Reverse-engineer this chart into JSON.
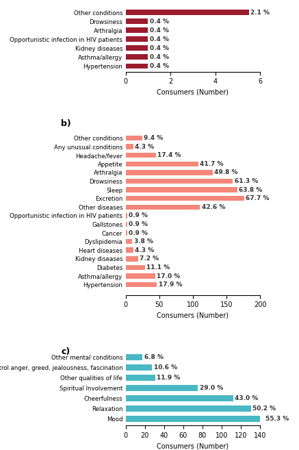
{
  "panel_a": {
    "categories": [
      "Other conditions",
      "Drowsiness",
      "Arthralgia",
      "Opportunistic infection in HIV patients",
      "Kidney diseases",
      "Asthma/allergy",
      "Hypertension"
    ],
    "values": [
      5.5,
      1.0,
      1.0,
      1.0,
      1.0,
      1.0,
      1.0
    ],
    "percentages": [
      "2.1 %",
      "0.4 %",
      "0.4 %",
      "0.4 %",
      "0.4 %",
      "0.4 %",
      "0.4 %"
    ],
    "color": "#9b1c2e",
    "xlabel": "Consumers (Number)",
    "xlim": [
      0,
      6
    ],
    "xticks": [
      0,
      2,
      4,
      6
    ]
  },
  "panel_b": {
    "categories": [
      "Other conditions",
      "Any unusual conditions",
      "Headache/fever",
      "Appetite",
      "Arthralgia",
      "Drowsiness",
      "Sleep",
      "Excretion",
      "Other diseases",
      "Opportunistic infection in HIV patients",
      "Gallstones",
      "Cancer",
      "Dyslipidemia",
      "Heart diseases",
      "Kidney diseases",
      "Diabetes",
      "Asthma/allergy",
      "Hypertension"
    ],
    "values": [
      24.4,
      11.2,
      45.2,
      108.4,
      129.5,
      159.4,
      165.9,
      176.0,
      110.8,
      2.3,
      2.3,
      2.3,
      9.9,
      11.2,
      18.7,
      28.9,
      44.2,
      46.5
    ],
    "percentages": [
      "9.4 %",
      "4.3 %",
      "17.4 %",
      "41.7 %",
      "49.8 %",
      "61.3 %",
      "63.8 %",
      "67.7 %",
      "42.6 %",
      "0.9 %",
      "0.9 %",
      "0.9 %",
      "3.8 %",
      "4.3 %",
      "7.2 %",
      "11.1 %",
      "17.0 %",
      "17.9 %"
    ],
    "color": "#f4877a",
    "xlabel": "Consumers (Number)",
    "xlim": [
      0,
      200
    ],
    "xticks": [
      0,
      50,
      100,
      150,
      200
    ],
    "label": "b)"
  },
  "panel_c": {
    "categories": [
      "Other mental conditions",
      "Ability to control anger, greed, jealousness, fascination",
      "Other qualities of life",
      "Spiritual Involvement",
      "Cheerfulness",
      "Relaxation",
      "Mood"
    ],
    "values": [
      17.7,
      27.6,
      30.9,
      75.4,
      111.8,
      130.5,
      143.8
    ],
    "percentages": [
      "6.8 %",
      "10.6 %",
      "11.9 %",
      "29.0 %",
      "43.0 %",
      "50.2 %",
      "55.3 %"
    ],
    "color": "#4ab8c4",
    "xlabel": "Consumers (Number)",
    "xlim": [
      0,
      140
    ],
    "xticks": [
      0,
      20,
      40,
      60,
      80,
      100,
      120,
      140
    ],
    "label": "c)"
  },
  "background_color": "#ffffff"
}
